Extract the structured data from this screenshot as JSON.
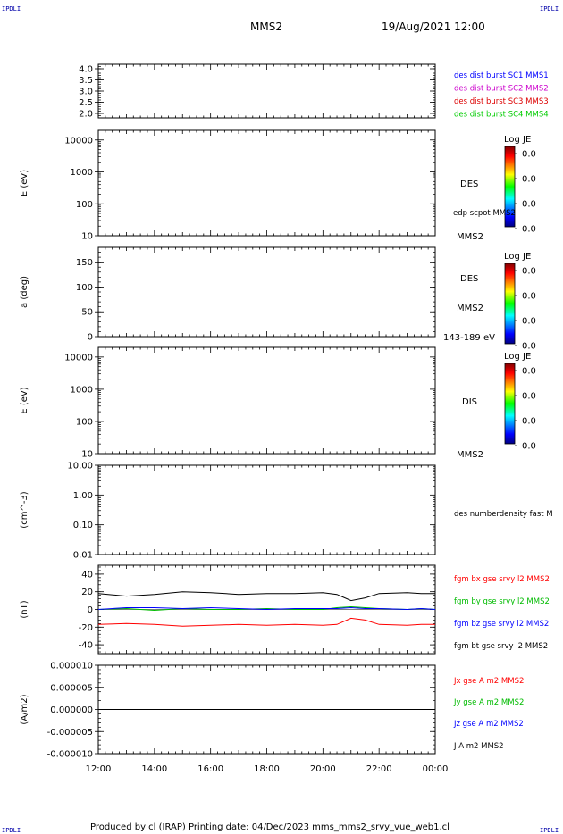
{
  "corners": {
    "top_left": "IPDLI",
    "top_right": "IPDLI",
    "bottom_left": "IPDLI",
    "bottom_right": "IPDLI"
  },
  "header": {
    "spacecraft": "MMS2",
    "datetime": "19/Aug/2021 12:00"
  },
  "footer": "Produced by cl (IRAP)   Printing date: 04/Dec/2023   mms_mms2_srvy_vue_web1.cl",
  "colors": {
    "mms1": "#0000ff",
    "mms2": "#cc00cc",
    "mms3": "#dd0000",
    "mms4": "#00cc00",
    "bx": "#ff0000",
    "by": "#00bb00",
    "bz": "#0000ff",
    "bt": "#000000"
  },
  "chart_data": [
    {
      "type": "line",
      "panel": "sc-count",
      "yticks": [
        "4.0",
        "3.5",
        "3.0",
        "2.5",
        "2.0"
      ],
      "ylim": [
        1.8,
        4.2
      ],
      "series": [],
      "legend": [
        {
          "text": "des dist burst SC1 MMS1",
          "color": "#0000ff"
        },
        {
          "text": "des dist burst SC2 MMS2",
          "color": "#cc00cc"
        },
        {
          "text": "des dist burst SC3 MMS3",
          "color": "#dd0000"
        },
        {
          "text": "des dist burst SC4 MMS4",
          "color": "#00cc00"
        }
      ]
    },
    {
      "type": "heatmap",
      "panel": "des-energy",
      "ylabel": "E (eV)",
      "scale": "log",
      "ylim": [
        10,
        20000
      ],
      "yticks": [
        "10000",
        "1000",
        "100",
        "10"
      ],
      "colorbar": {
        "title": "Log JE",
        "ticks": [
          "0.0",
          "0.0",
          "0.0",
          "0.0"
        ]
      },
      "labels": [
        "DES",
        "edp scpot MMS2",
        "MMS2"
      ]
    },
    {
      "type": "heatmap",
      "panel": "des-pitch",
      "ylabel": "a (deg)",
      "ylim": [
        0,
        180
      ],
      "yticks": [
        "150",
        "100",
        "50",
        "0"
      ],
      "colorbar": {
        "title": "Log JE",
        "ticks": [
          "0.0",
          "0.0",
          "0.0",
          "0.0"
        ]
      },
      "labels": [
        "DES",
        "MMS2",
        "143-189 eV"
      ]
    },
    {
      "type": "heatmap",
      "panel": "dis-energy",
      "ylabel": "E (eV)",
      "scale": "log",
      "ylim": [
        10,
        20000
      ],
      "yticks": [
        "10000",
        "1000",
        "100",
        "10"
      ],
      "colorbar": {
        "title": "Log JE",
        "ticks": [
          "0.0",
          "0.0",
          "0.0",
          "0.0"
        ]
      },
      "labels": [
        "DIS",
        "MMS2"
      ]
    },
    {
      "type": "line",
      "panel": "density",
      "ylabel": "(cm^-3)",
      "scale": "log",
      "ylim": [
        0.01,
        10
      ],
      "yticks": [
        "10.00",
        "1.00",
        "0.10",
        "0.01"
      ],
      "series": [],
      "legend": [
        {
          "text": "des numberdensity fast M",
          "color": "#000000"
        }
      ]
    },
    {
      "type": "line",
      "panel": "magnetic-field",
      "ylabel": "(nT)",
      "ylim": [
        -50,
        50
      ],
      "yticks": [
        "40",
        "20",
        "0",
        "-20",
        "-40"
      ],
      "x": [
        0,
        1,
        2,
        3,
        4,
        5,
        6,
        7,
        8,
        8.5,
        9,
        9.5,
        10,
        11,
        11.5,
        12
      ],
      "series": [
        {
          "name": "fgm bx gse srvy l2 MMS2",
          "color": "#ff0000",
          "values": [
            -17,
            -16,
            -17,
            -19,
            -18,
            -17,
            -18,
            -17,
            -18,
            -17,
            -10,
            -12,
            -17,
            -18,
            -17,
            -17
          ]
        },
        {
          "name": "fgm by gse srvy l2 MMS2",
          "color": "#00bb00",
          "values": [
            0,
            1,
            -1,
            1,
            0,
            0,
            1,
            0,
            0,
            2,
            3,
            2,
            1,
            0,
            1,
            0
          ]
        },
        {
          "name": "fgm bz gse srvy l2 MMS2",
          "color": "#0000ff",
          "values": [
            0,
            2,
            2,
            1,
            2,
            1,
            0,
            1,
            1,
            1,
            2,
            1,
            1,
            0,
            1,
            0
          ]
        },
        {
          "name": "fgm bt gse srvy l2 MMS2",
          "color": "#000000",
          "values": [
            18,
            15,
            17,
            20,
            19,
            17,
            18,
            18,
            19,
            17,
            10,
            13,
            18,
            19,
            18,
            18
          ]
        }
      ]
    },
    {
      "type": "line",
      "panel": "current-density",
      "ylabel": "(A/m2)",
      "ylim": [
        -1e-05,
        1e-05
      ],
      "yticks": [
        "0.000010",
        "0.000005",
        "0.000000",
        "-0.000005",
        "-0.000010"
      ],
      "x": [
        0,
        12
      ],
      "series": [
        {
          "name": "Jx gse A m2 MMS2",
          "color": "#ff0000",
          "values": [
            0,
            0
          ]
        },
        {
          "name": "Jy gse A m2 MMS2",
          "color": "#00bb00",
          "values": [
            0,
            0
          ]
        },
        {
          "name": "Jz gse A m2 MMS2",
          "color": "#0000ff",
          "values": [
            0,
            0
          ]
        },
        {
          "name": "J A m2 MMS2",
          "color": "#000000",
          "values": [
            0,
            0
          ]
        }
      ]
    }
  ],
  "xaxis": {
    "ticks": [
      "12:00",
      "14:00",
      "16:00",
      "18:00",
      "20:00",
      "22:00",
      "00:00"
    ],
    "xlim": [
      0,
      12
    ]
  }
}
